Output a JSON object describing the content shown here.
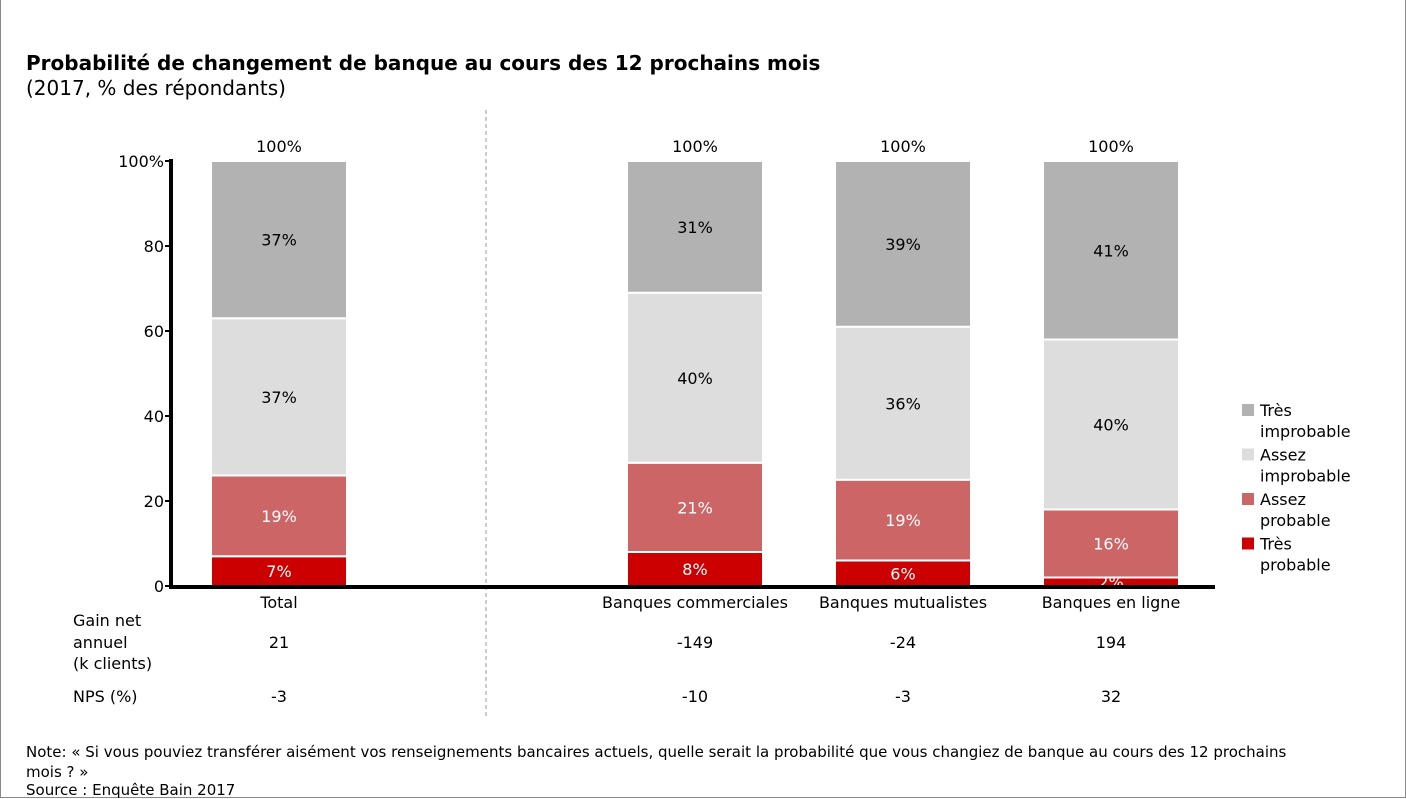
{
  "chart_data": {
    "type": "bar",
    "stacked": true,
    "title": "Probabilité de changement de banque au cours des 12 prochains mois",
    "subtitle": "(2017, % des répondants)",
    "categories": [
      "Total",
      "Banques commerciales",
      "Banques mutualistes",
      "Banques en ligne"
    ],
    "totals": [
      "100%",
      "100%",
      "100%",
      "100%"
    ],
    "series": [
      {
        "name": "Très probable",
        "color": "#cc0000",
        "label_color": "#ffffff",
        "values": [
          7,
          8,
          6,
          2
        ]
      },
      {
        "name": "Assez probable",
        "color": "#cc6666",
        "label_color": "#ffffff",
        "values": [
          19,
          21,
          19,
          16
        ]
      },
      {
        "name": "Assez improbable",
        "color": "#dddddd",
        "label_color": "#000000",
        "values": [
          37,
          40,
          36,
          40
        ]
      },
      {
        "name": "Très improbable",
        "color": "#b2b2b2",
        "label_color": "#000000",
        "values": [
          37,
          31,
          39,
          41
        ]
      }
    ],
    "ylim": [
      0,
      100
    ],
    "yticks": [
      "100%",
      "80",
      "60",
      "40",
      "20",
      "0"
    ],
    "ytick_values": [
      100,
      80,
      60,
      40,
      20,
      0
    ],
    "legend_position": "right",
    "legend": [
      {
        "line1": "Très",
        "line2": "improbable",
        "color": "#b2b2b2"
      },
      {
        "line1": "Assez",
        "line2": "improbable",
        "color": "#dddddd"
      },
      {
        "line1": "Assez",
        "line2": "probable",
        "color": "#cc6666"
      },
      {
        "line1": "Très",
        "line2": "probable",
        "color": "#cc0000"
      }
    ],
    "grid": false
  },
  "table": {
    "gain_label": [
      "Gain net",
      "annuel",
      "(k clients)"
    ],
    "gain_values": [
      "21",
      "-149",
      "-24",
      "194"
    ],
    "nps_label": "NPS (%)",
    "nps_values": [
      "-3",
      "-10",
      "-3",
      "32"
    ]
  },
  "note": {
    "line1": "Note: « Si vous pouviez transférer aisément vos renseignements bancaires actuels, quelle serait la probabilité que vous changiez de banque au cours des 12 prochains",
    "line2": "mois ? »",
    "source": "Source : Enquête Bain 2017"
  }
}
